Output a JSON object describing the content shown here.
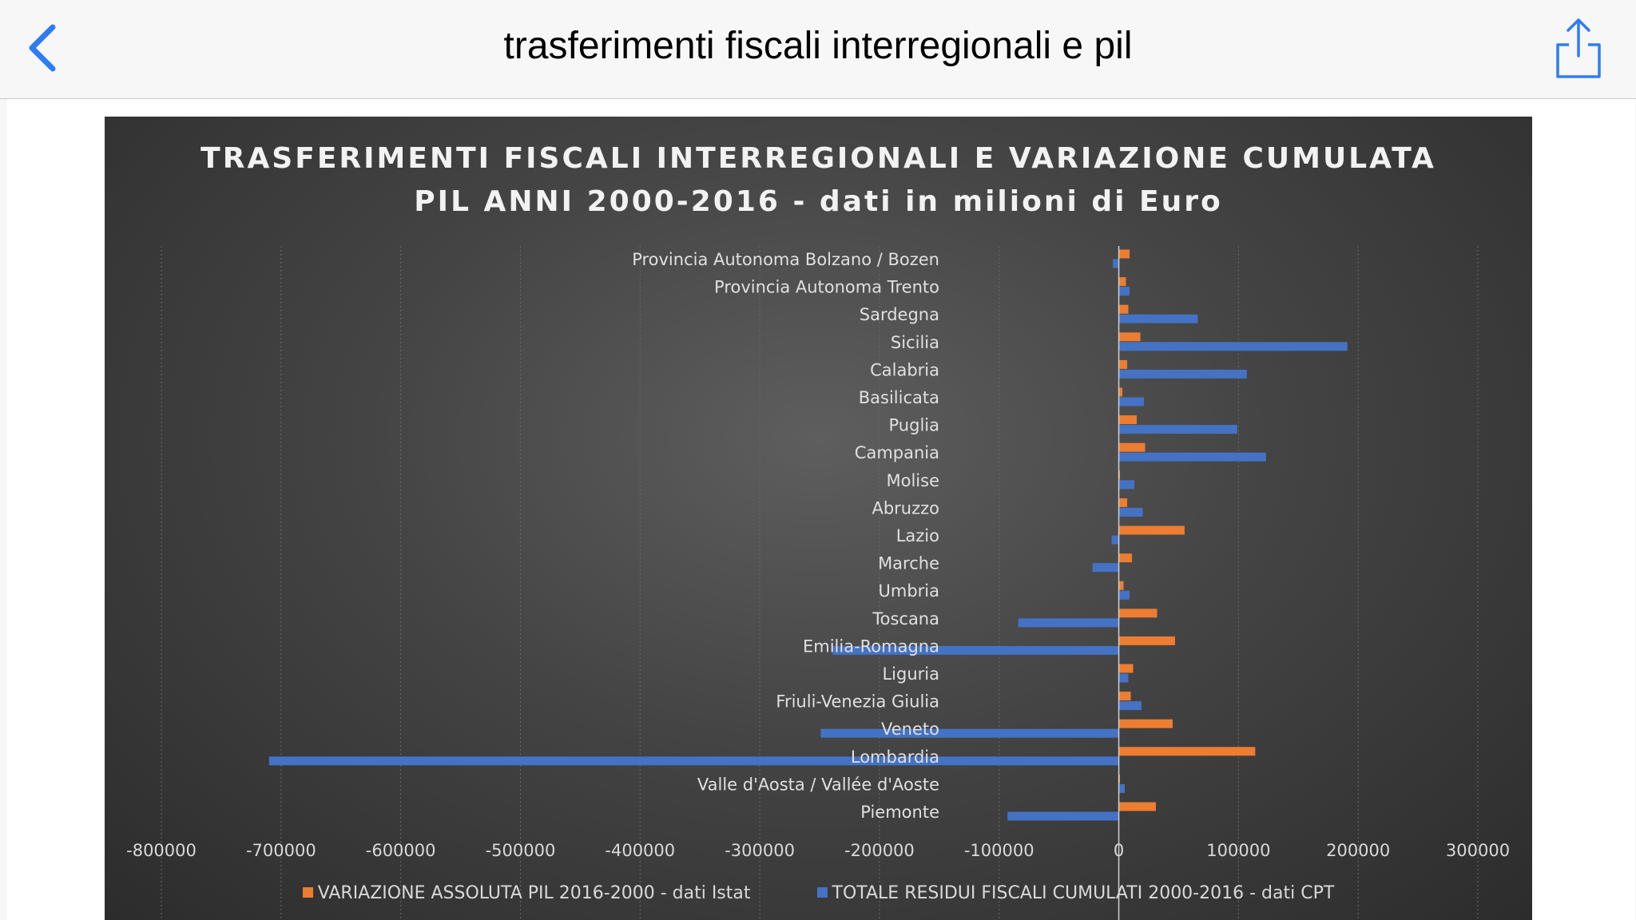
{
  "header": {
    "title": "trasferimenti fiscali interregionali e pil",
    "back_icon": "chevron-left-icon",
    "share_icon": "share-icon",
    "accent": "#2f7cf6"
  },
  "chart_data": {
    "type": "bar",
    "orientation": "horizontal",
    "title_line1": "TRASFERIMENTI FISCALI INTERREGIONALI E VARIAZIONE CUMULATA",
    "title_line2": "PIL ANNI 2000-2016 - dati in milioni di Euro",
    "categories": [
      "Provincia Autonoma Bolzano / Bozen",
      "Provincia Autonoma Trento",
      "Sardegna",
      "Sicilia",
      "Calabria",
      "Basilicata",
      "Puglia",
      "Campania",
      "Molise",
      "Abruzzo",
      "Lazio",
      "Marche",
      "Umbria",
      "Toscana",
      "Emilia-Romagna",
      "Liguria",
      "Friuli-Venezia Giulia",
      "Veneto",
      "Lombardia",
      "Valle d'Aosta / Vallée d'Aoste",
      "Piemonte"
    ],
    "series": [
      {
        "name": "VARIAZIONE ASSOLUTA PIL 2016-2000 - dati Istat",
        "color": "#ed7d31",
        "values": [
          9000,
          6000,
          8000,
          18000,
          7000,
          3000,
          15000,
          22000,
          1000,
          7000,
          55000,
          11000,
          4000,
          32000,
          47000,
          12000,
          10000,
          45000,
          114000,
          1000,
          31000
        ]
      },
      {
        "name": "TOTALE RESIDUI FISCALI CUMULATI 2000-2016 - dati CPT",
        "color": "#4472c4",
        "values": [
          -5000,
          9000,
          66000,
          191000,
          107000,
          21000,
          99000,
          123000,
          13000,
          20000,
          -6000,
          -22000,
          9000,
          -84000,
          -239000,
          8000,
          19000,
          -249000,
          -710000,
          5000,
          -93000
        ]
      }
    ],
    "xlim": [
      -800000,
      300000
    ],
    "xticks": [
      "-800000",
      "-700000",
      "-600000",
      "-500000",
      "-400000",
      "-300000",
      "-200000",
      "-100000",
      "0",
      "100000",
      "200000",
      "300000"
    ],
    "grid": true,
    "legend_position": "bottom"
  }
}
